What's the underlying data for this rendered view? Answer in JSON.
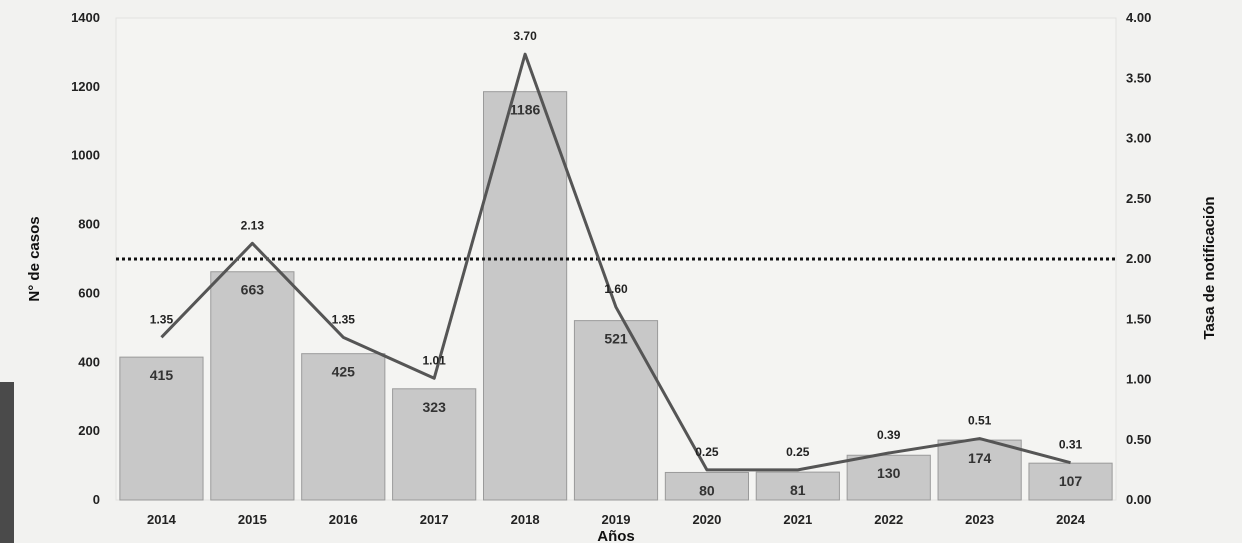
{
  "chart_data": {
    "type": "bar",
    "categories": [
      "2014",
      "2015",
      "2016",
      "2017",
      "2018",
      "2019",
      "2020",
      "2021",
      "2022",
      "2023",
      "2024"
    ],
    "series": [
      {
        "values": [
          415,
          663,
          425,
          323,
          1186,
          521,
          80,
          81,
          130,
          174,
          107
        ],
        "axis": "left",
        "kind": "bar",
        "color": "#c8c8c8"
      },
      {
        "values": [
          1.35,
          2.13,
          1.35,
          1.01,
          3.7,
          1.6,
          0.25,
          0.25,
          0.39,
          0.51,
          0.31
        ],
        "axis": "right",
        "kind": "line",
        "color": "#555555"
      }
    ],
    "bar_labels": [
      "415",
      "663",
      "425",
      "323",
      "1186",
      "521",
      "80",
      "81",
      "130",
      "174",
      "107"
    ],
    "line_labels": [
      "1.35",
      "2.13",
      "1.35",
      "1.01",
      "3.70",
      "1.60",
      "0.25",
      "0.25",
      "0.39",
      "0.51",
      "0.31"
    ],
    "reference_line": {
      "value": 2.0,
      "axis": "right",
      "style": "dotted"
    },
    "xlabel": "Años",
    "ylabel": "N° de casos",
    "ylabel_right": "Tasa de notificación",
    "ylim": [
      0,
      1400
    ],
    "ylim_right": [
      0,
      4.0
    ],
    "yticks": [
      "0",
      "200",
      "400",
      "600",
      "800",
      "1000",
      "1200",
      "1400"
    ],
    "yticks_right": [
      "0.00",
      "0.50",
      "1.00",
      "1.50",
      "2.00",
      "2.50",
      "3.00",
      "3.50",
      "4.00"
    ],
    "grid": false,
    "legend": "none"
  }
}
